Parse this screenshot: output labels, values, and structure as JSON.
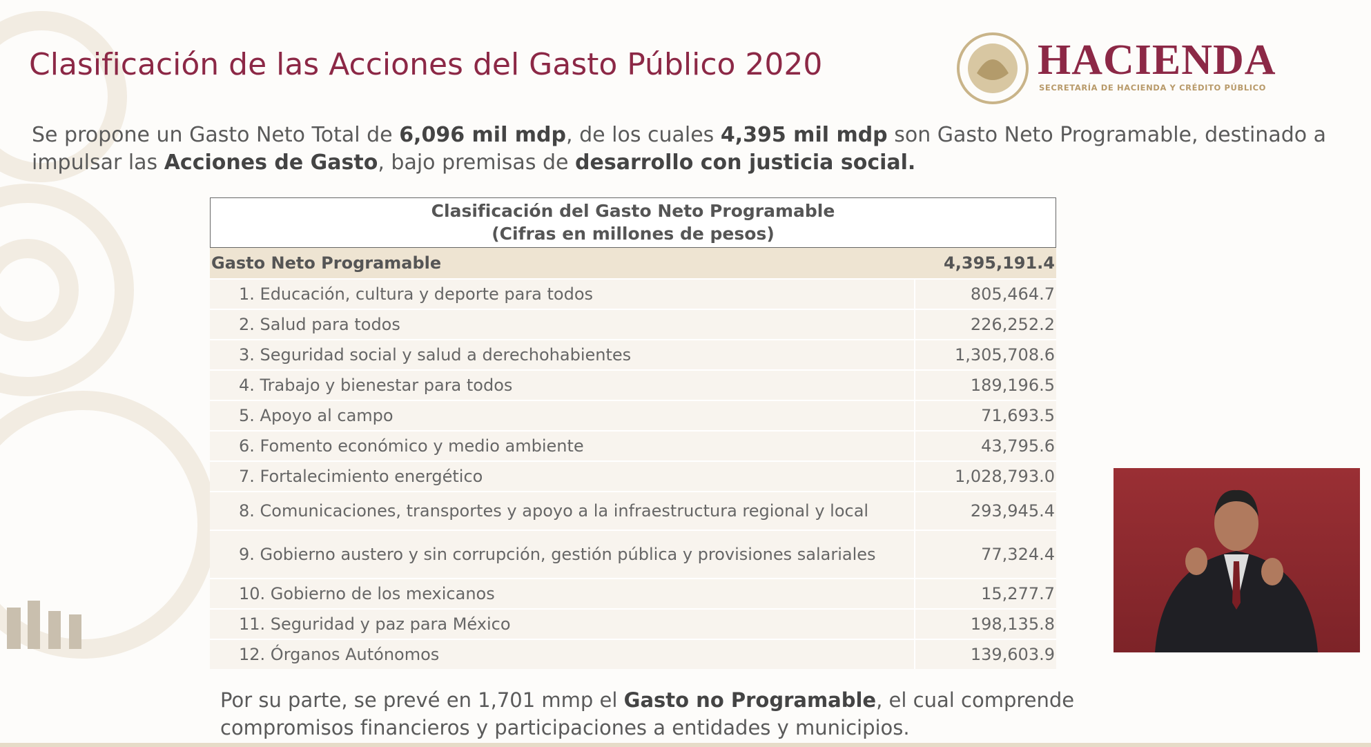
{
  "header": {
    "title": "Clasificación de las Acciones del Gasto Público 2020",
    "logo_name": "HACIENDA",
    "logo_subtitle": "SECRETARÍA DE HACIENDA Y CRÉDITO PÚBLICO"
  },
  "intro": [
    {
      "text": "Se propone un Gasto Neto Total de ",
      "bold": false
    },
    {
      "text": "6,096 mil mdp",
      "bold": true
    },
    {
      "text": ", de los cuales ",
      "bold": false
    },
    {
      "text": "4,395 mil mdp",
      "bold": true
    },
    {
      "text": " son Gasto Neto Programable, destinado a impulsar las ",
      "bold": false
    },
    {
      "text": "Acciones de Gasto",
      "bold": true
    },
    {
      "text": ", bajo premisas de ",
      "bold": false
    },
    {
      "text": "desarrollo con justicia social.",
      "bold": true
    }
  ],
  "table": {
    "title": "Clasificación del Gasto Neto Programable",
    "subtitle": "(Cifras en millones de pesos)",
    "total": {
      "label": "Gasto Neto Programable",
      "value": "4,395,191.4"
    },
    "rows": [
      [
        "1. Educación, cultura y deporte para todos",
        "805,464.7"
      ],
      [
        "2. Salud para todos",
        "226,252.2"
      ],
      [
        "3. Seguridad social y salud a derechohabientes",
        "1,305,708.6"
      ],
      [
        "4. Trabajo y bienestar para todos",
        "189,196.5"
      ],
      [
        "5. Apoyo al campo",
        "71,693.5"
      ],
      [
        "6. Fomento económico y medio ambiente",
        "43,795.6"
      ],
      [
        "7. Fortalecimiento energético",
        "1,028,793.0"
      ],
      [
        "8. Comunicaciones, transportes y apoyo a la infraestructura regional y local",
        "293,945.4"
      ],
      [
        "9. Gobierno austero y sin corrupción, gestión pública y provisiones salariales",
        "77,324.4"
      ],
      [
        "10. Gobierno de los mexicanos",
        "15,277.7"
      ],
      [
        "11. Seguridad y paz para México",
        "198,135.8"
      ],
      [
        "12. Órganos Autónomos",
        "139,603.9"
      ]
    ]
  },
  "footer": [
    {
      "text": "Por su parte, se prevé en 1,701 mmp el ",
      "bold": false
    },
    {
      "text": "Gasto no Programable",
      "bold": true
    },
    {
      "text": ", el cual comprende compromisos financieros y participaciones a entidades y municipios.",
      "bold": false
    }
  ]
}
